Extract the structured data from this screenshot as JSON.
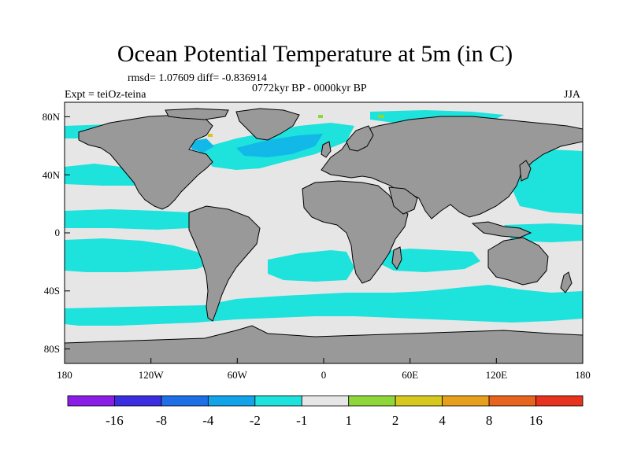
{
  "title": "Ocean Potential Temperature at 5m (in C)",
  "stats": "rmsd= 1.07609 diff= -0.836914",
  "subtitle": "0772kyr BP - 0000kyr BP",
  "experiment": "Expt = teiOz-teina",
  "season": "JJA",
  "colors": {
    "land": "#999999",
    "ocean_neutral": "#e6e6e6",
    "cool_light": "#1ee2dc",
    "cool_mid": "#12b9e8",
    "cool_strong": "#0f80e4",
    "warm_small": "#8fd63b",
    "warm_mid": "#d6c81e"
  },
  "map_data": {
    "projection": "cylindrical equidistant",
    "lon_range": [
      -180,
      180
    ],
    "lat_range": [
      -90,
      90
    ],
    "x_ticks": [
      "180",
      "120W",
      "60W",
      "0",
      "60E",
      "120E",
      "180"
    ],
    "y_ticks": [
      "80N",
      "40N",
      "0",
      "40S",
      "80S"
    ],
    "colorbar": {
      "levels": [
        "-16",
        "-8",
        "-4",
        "-2",
        "-1",
        "1",
        "2",
        "4",
        "8",
        "16"
      ],
      "colors": [
        "#8a1ee6",
        "#3a2ee0",
        "#1e6ee6",
        "#12a3e8",
        "#1ee2dc",
        "#e6e6e6",
        "#8fd63b",
        "#d6c81e",
        "#e6a01e",
        "#e6641e",
        "#e6321e"
      ]
    }
  }
}
